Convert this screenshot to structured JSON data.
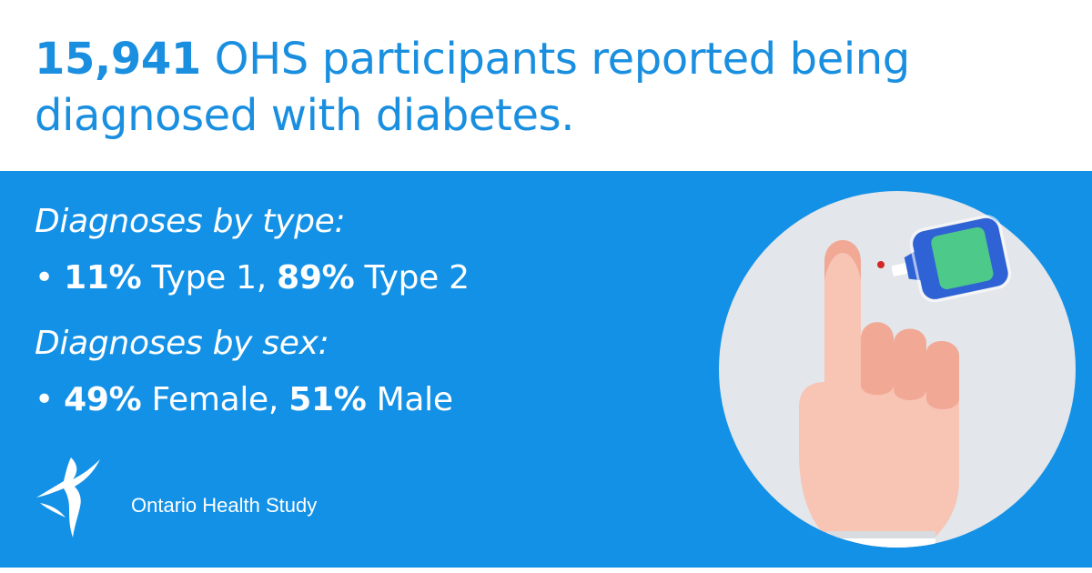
{
  "headline": {
    "number": "15,941",
    "line1_rest": "OHS participants reported being",
    "line2": "diagnosed with diabetes."
  },
  "sections": {
    "type_title": "Diagnoses by type:",
    "type_bullet": {
      "dot": "•",
      "v1": "11%",
      "t1": "Type 1,",
      "v2": "89%",
      "t2": "Type 2"
    },
    "sex_title": "Diagnoses by sex:",
    "sex_bullet": {
      "dot": "•",
      "v1": "49%",
      "t1": "Female,",
      "v2": "51%",
      "t2": "Male"
    }
  },
  "logo": {
    "name": "Ontario Health Study"
  },
  "illustration": {
    "icon": "finger-glucose-meter-icon"
  },
  "colors": {
    "brand_blue": "#1391e6",
    "headline_blue": "#1a8fe0",
    "circle": "#e3e6ea",
    "skin": "#f8c4b4",
    "meter_screen": "#4dc98a"
  }
}
